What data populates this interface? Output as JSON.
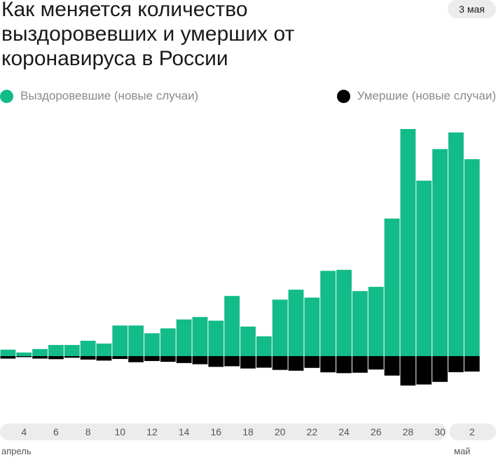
{
  "title": "Как меняется количество выздоровевших и умерших от коронавируса в России",
  "date_badge": "3 мая",
  "legend": {
    "recovered": {
      "label": "Выздоровевшие (новые случаи)",
      "color": "#12bb87"
    },
    "deaths": {
      "label": "Умершие (новые случаи)",
      "color": "#000000"
    }
  },
  "month_labels": {
    "april": "апрель",
    "may": "май"
  },
  "chart_data": {
    "type": "bar",
    "title": "Как меняется количество выздоровевших и умерших от коронавируса в России",
    "x": [
      "3",
      "4",
      "5",
      "6",
      "7",
      "8",
      "9",
      "10",
      "11",
      "12",
      "13",
      "14",
      "15",
      "16",
      "17",
      "18",
      "19",
      "20",
      "21",
      "22",
      "23",
      "24",
      "25",
      "26",
      "27",
      "28",
      "29",
      "30",
      "1",
      "2",
      "3"
    ],
    "x_month": [
      "апрель",
      "апрель",
      "апрель",
      "апрель",
      "апрель",
      "апрель",
      "апрель",
      "апрель",
      "апрель",
      "апрель",
      "апрель",
      "апрель",
      "апрель",
      "апрель",
      "апрель",
      "апрель",
      "апрель",
      "апрель",
      "апрель",
      "апрель",
      "апрель",
      "апрель",
      "апрель",
      "апрель",
      "апрель",
      "апрель",
      "апрель",
      "апрель",
      "май",
      "май",
      "май"
    ],
    "tick_labels": [
      "4",
      "6",
      "8",
      "10",
      "12",
      "14",
      "16",
      "18",
      "20",
      "22",
      "24",
      "26",
      "28",
      "30",
      "2"
    ],
    "series": [
      {
        "name": "Выздоровевшие (новые случаи)",
        "direction": "up",
        "values": [
          32,
          18,
          35,
          55,
          55,
          76,
          62,
          151,
          151,
          113,
          137,
          181,
          193,
          175,
          297,
          146,
          98,
          279,
          328,
          289,
          421,
          426,
          321,
          342,
          679,
          1121,
          866,
          1022,
          1104,
          972,
          0
        ]
      },
      {
        "name": "Умершие (новые случаи)",
        "direction": "down",
        "values": [
          12,
          5,
          12,
          15,
          8,
          17,
          22,
          14,
          30,
          24,
          28,
          34,
          40,
          53,
          50,
          61,
          57,
          68,
          72,
          58,
          80,
          84,
          82,
          66,
          96,
          145,
          140,
          127,
          79,
          76,
          0
        ]
      }
    ],
    "grid": false,
    "legend_position": "top"
  }
}
